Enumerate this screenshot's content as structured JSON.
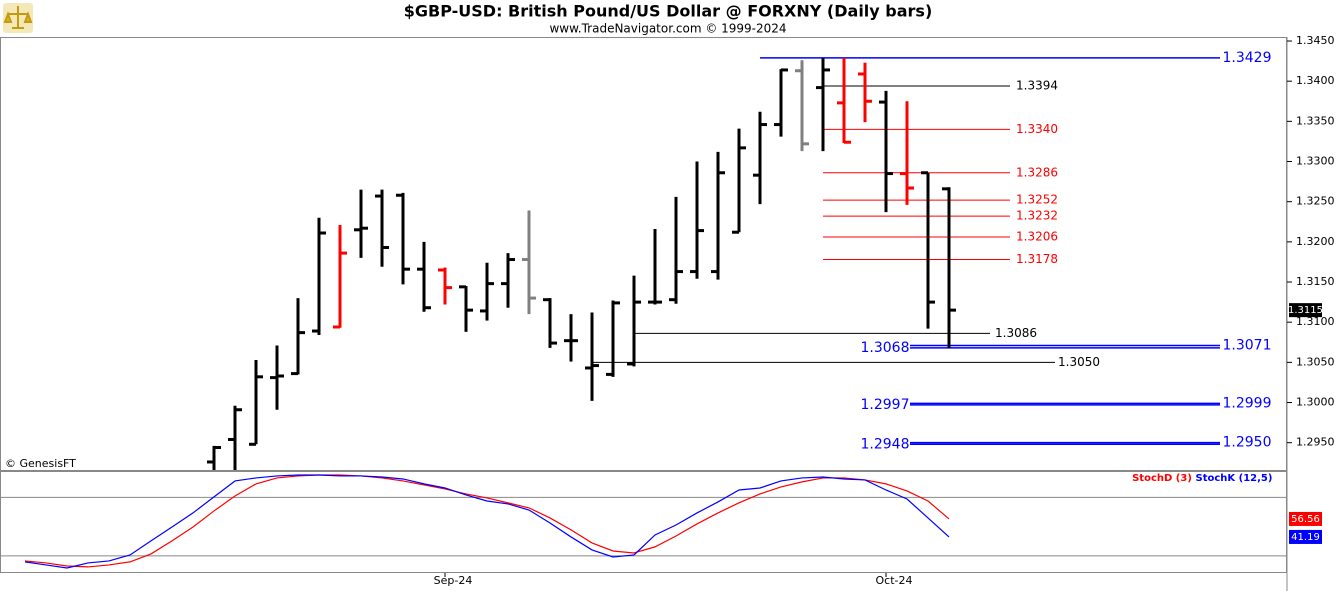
{
  "chart_data": [
    {
      "type": "ohlc",
      "title": "$GBP-USD:  British Pound/US Dollar @ FORXNY  (Daily bars)",
      "subtitle": "www.TradeNavigator.com © 1999-2024",
      "credit": "© GenesisFT",
      "open": [
        null,
        null,
        null,
        null,
        null,
        null,
        null,
        null,
        null,
        1.2926,
        1.2954,
        1.2948,
        1.3031,
        1.3036,
        1.3089,
        1.3094,
        1.3215,
        1.3257,
        1.3258,
        1.3166,
        1.3165,
        1.3144,
        1.3114,
        1.3148,
        1.3178,
        1.3128,
        1.3077,
        1.3043,
        1.3035,
        1.3048,
        1.3125,
        1.3128,
        1.3163,
        1.3163,
        1.3212,
        1.3283,
        1.3346,
        1.3413,
        1.3392,
        1.3373,
        1.3409,
        1.3374,
        1.3285,
        1.3286,
        1.3266
      ],
      "high": [
        null,
        null,
        null,
        null,
        null,
        null,
        null,
        null,
        null,
        1.2946,
        1.2996,
        1.3053,
        1.3071,
        1.313,
        1.323,
        1.3221,
        1.3265,
        1.3265,
        1.3261,
        1.32,
        1.3168,
        1.3145,
        1.3174,
        1.3186,
        1.3239,
        1.313,
        1.311,
        1.3112,
        1.3127,
        1.3158,
        1.3216,
        1.3256,
        1.33,
        1.3312,
        1.3341,
        1.3362,
        1.3415,
        1.3426,
        1.3429,
        1.3429,
        1.3423,
        1.3388,
        1.3375,
        1.3286,
        1.3268
      ],
      "low": [
        null,
        null,
        null,
        null,
        null,
        null,
        null,
        null,
        null,
        1.2916,
        1.2916,
        1.2948,
        1.2991,
        1.3035,
        1.3084,
        1.3093,
        1.318,
        1.3169,
        1.3147,
        1.3113,
        1.3122,
        1.3088,
        1.3102,
        1.3118,
        1.311,
        1.3068,
        1.3051,
        1.3002,
        1.3032,
        1.3045,
        1.3122,
        1.3123,
        1.3154,
        1.3153,
        1.3212,
        1.3247,
        1.3331,
        1.3313,
        1.3313,
        1.3323,
        1.3349,
        1.3237,
        1.3246,
        1.3092,
        1.3068
      ],
      "close": [
        null,
        null,
        null,
        null,
        null,
        null,
        null,
        null,
        null,
        1.2944,
        1.2991,
        1.3032,
        1.3033,
        1.3087,
        1.3211,
        1.3186,
        1.3217,
        1.3193,
        1.3166,
        1.3118,
        1.3143,
        1.3115,
        1.3148,
        1.3178,
        1.313,
        1.3074,
        1.3077,
        1.3046,
        1.3124,
        1.3125,
        1.3125,
        1.3163,
        1.3214,
        1.3286,
        1.3317,
        1.3346,
        1.3414,
        1.3322,
        1.3414,
        1.3324,
        1.3375,
        1.3285,
        1.3267,
        1.3125,
        1.3115
      ],
      "colors": [
        null,
        null,
        null,
        null,
        null,
        null,
        null,
        null,
        null,
        "#000000",
        "#000000",
        "#000000",
        "#000000",
        "#000000",
        "#000000",
        "#ff0000",
        "#000000",
        "#000000",
        "#000000",
        "#000000",
        "#ff0000",
        "#000000",
        "#000000",
        "#000000",
        "#808080",
        "#000000",
        "#000000",
        "#000000",
        "#000000",
        "#000000",
        "#000000",
        "#000000",
        "#000000",
        "#000000",
        "#000000",
        "#000000",
        "#000000",
        "#808080",
        "#000000",
        "#ff0000",
        "#ff0000",
        "#000000",
        "#ff0000",
        "#000000",
        "#000000"
      ],
      "ylim": [
        1.2916,
        1.3455
      ],
      "yticks": [
        {
          "value": 1.345,
          "label": "1.3450"
        },
        {
          "value": 1.34,
          "label": "1.3400"
        },
        {
          "value": 1.335,
          "label": "1.3350"
        },
        {
          "value": 1.33,
          "label": "1.3300"
        },
        {
          "value": 1.325,
          "label": "1.3250"
        },
        {
          "value": 1.32,
          "label": "1.3200"
        },
        {
          "value": 1.315,
          "label": "1.3150"
        },
        {
          "value": 1.31,
          "label": "1.3100"
        },
        {
          "value": 1.305,
          "label": "1.3050"
        },
        {
          "value": 1.3,
          "label": "1.3000"
        },
        {
          "value": 1.295,
          "label": "1.2950"
        }
      ],
      "last_price": 1.3115,
      "levels": [
        {
          "value": 1.3429,
          "color": "#0000ff"
        },
        {
          "value": 1.3394,
          "color": "#000000"
        },
        {
          "value": 1.334,
          "label": "1.3340",
          "color": "#ff0000"
        },
        {
          "value": 1.3286,
          "color": "#ff0000"
        },
        {
          "value": 1.3252,
          "color": "#ff0000"
        },
        {
          "value": 1.3232,
          "color": "#ff0000"
        },
        {
          "value": 1.3206,
          "color": "#ff0000"
        },
        {
          "value": 1.3178,
          "color": "#ff0000"
        },
        {
          "value": 1.3086,
          "color": "#000000"
        },
        {
          "value": 1.3071,
          "color": "#0000ff"
        },
        {
          "value": 1.3068,
          "color": "#0000ff"
        },
        {
          "value": 1.305,
          "label": "1.3050",
          "color": "#000000"
        },
        {
          "value": 1.2999,
          "color": "#0000ff"
        },
        {
          "value": 1.2997,
          "color": "#0000ff"
        },
        {
          "value": 1.295,
          "label": "1.2950",
          "color": "#0000ff"
        },
        {
          "value": 1.2948,
          "color": "#0000ff"
        }
      ]
    },
    {
      "type": "line",
      "categories": [
        null,
        null,
        null,
        null,
        null,
        null,
        null,
        null,
        null,
        null,
        null,
        null,
        null,
        null,
        null,
        null,
        null,
        null,
        null,
        null,
        "Sep-24",
        null,
        null,
        null,
        null,
        null,
        null,
        null,
        null,
        null,
        null,
        null,
        null,
        null,
        null,
        null,
        null,
        null,
        null,
        null,
        null,
        "Oct-24",
        null,
        null,
        null
      ],
      "series": [
        {
          "name": "StochD (3)",
          "color": "#ff0000",
          "values": [
            20.7,
            19.0,
            16.4,
            15.6,
            17.3,
            19.9,
            26.7,
            37.8,
            49.7,
            63.4,
            76.2,
            86.5,
            91.6,
            93.3,
            94.1,
            94.1,
            93.3,
            91.6,
            89.0,
            85.6,
            82.2,
            77.9,
            74.5,
            70.3,
            66.0,
            57.4,
            47.2,
            36.1,
            29.2,
            27.5,
            32.7,
            42.0,
            52.3,
            61.7,
            70.3,
            77.9,
            83.9,
            88.2,
            91.6,
            91.6,
            89.9,
            86.5,
            80.5,
            71.9,
            56.56
          ]
        },
        {
          "name": "StochK (12,5)",
          "color": "#0000ff",
          "values": [
            19.9,
            17.3,
            14.7,
            19.0,
            20.7,
            25.8,
            37.8,
            49.7,
            61.7,
            75.4,
            89.0,
            91.6,
            93.3,
            94.1,
            94.1,
            93.3,
            93.3,
            92.4,
            90.7,
            86.5,
            83.0,
            77.1,
            71.9,
            69.4,
            64.2,
            53.1,
            41.2,
            30.1,
            24.1,
            25.8,
            42.9,
            51.4,
            61.7,
            71.1,
            81.3,
            83.0,
            89.0,
            91.6,
            92.4,
            90.7,
            89.9,
            81.3,
            73.6,
            57.4,
            41.19
          ]
        }
      ],
      "ylim": [
        10.4,
        95.8
      ],
      "hlines": [
        75,
        25
      ]
    }
  ]
}
